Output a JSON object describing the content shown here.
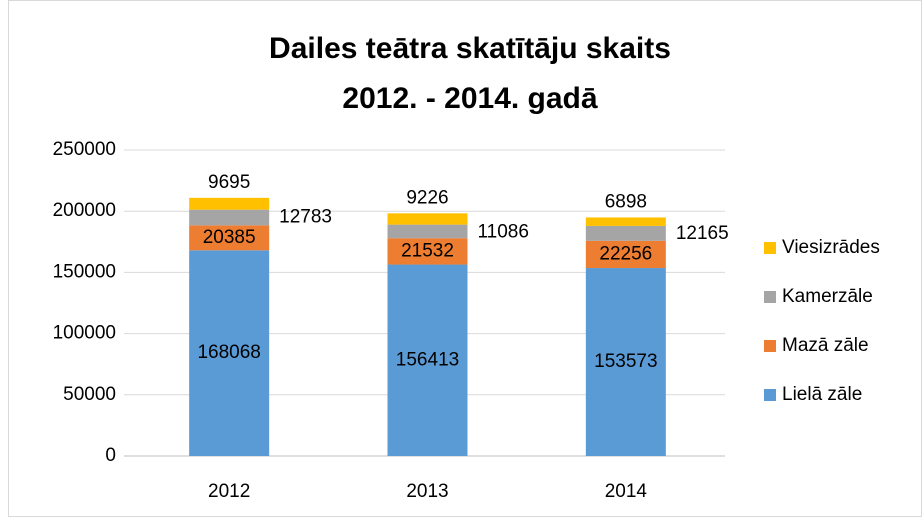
{
  "chart_data": {
    "type": "stacked_bar",
    "title": [
      "Dailes teātra skatītāju skaits",
      "2012. - 2014. gadā"
    ],
    "categories": [
      "2012",
      "2013",
      "2014"
    ],
    "series": [
      {
        "name": "Lielā zāle",
        "color": "#5b9bd5",
        "values": [
          168068,
          156413,
          153573
        ]
      },
      {
        "name": "Mazā zāle",
        "color": "#ed7d31",
        "values": [
          20385,
          21532,
          22256
        ]
      },
      {
        "name": "Kamerzāle",
        "color": "#a5a5a5",
        "values": [
          12783,
          11086,
          12165
        ]
      },
      {
        "name": "Viesizrādes",
        "color": "#ffc000",
        "values": [
          9695,
          9226,
          6898
        ]
      }
    ],
    "ylim": [
      0,
      250000
    ],
    "yticks": [
      0,
      50000,
      100000,
      150000,
      200000,
      250000
    ],
    "grid": true,
    "legend": "right"
  }
}
